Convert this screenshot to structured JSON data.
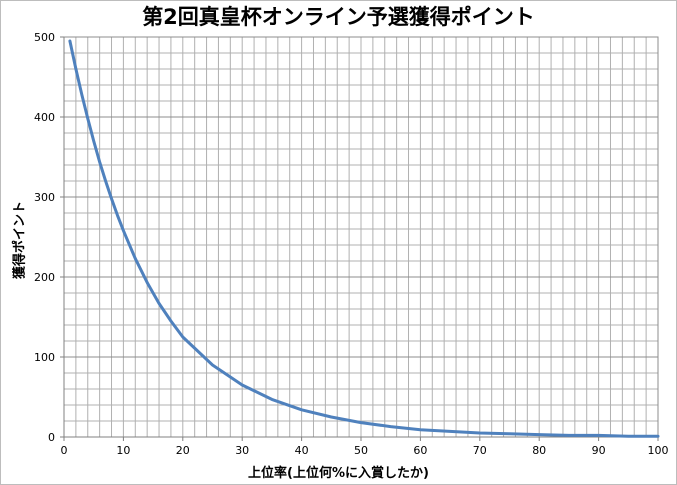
{
  "chart_data": {
    "type": "line",
    "title": "第2回真皇杯オンライン予選獲得ポイント",
    "xlabel": "上位率(上位何%に入賞したか)",
    "ylabel": "獲得ポイント",
    "xlim": [
      0,
      100
    ],
    "ylim": [
      0,
      500
    ],
    "x_ticks": [
      0,
      10,
      20,
      30,
      40,
      50,
      60,
      70,
      80,
      90,
      100
    ],
    "y_ticks": [
      0,
      100,
      200,
      300,
      400,
      500
    ],
    "x_minor_step": 2,
    "y_minor_step": 20,
    "grid": true,
    "series": [
      {
        "color": "#4f81bd",
        "x": [
          1,
          2,
          3,
          4,
          5,
          6,
          7,
          8,
          9,
          10,
          12,
          14,
          16,
          18,
          20,
          25,
          30,
          35,
          40,
          45,
          50,
          55,
          60,
          65,
          70,
          75,
          80,
          85,
          90,
          95,
          100
        ],
        "y": [
          495,
          460,
          428,
          398,
          370,
          344,
          320,
          298,
          277,
          258,
          223,
          193,
          167,
          145,
          125,
          90,
          65,
          47,
          34,
          25,
          18,
          13,
          9,
          7,
          5,
          4,
          3,
          2,
          2,
          1,
          1
        ]
      }
    ]
  }
}
